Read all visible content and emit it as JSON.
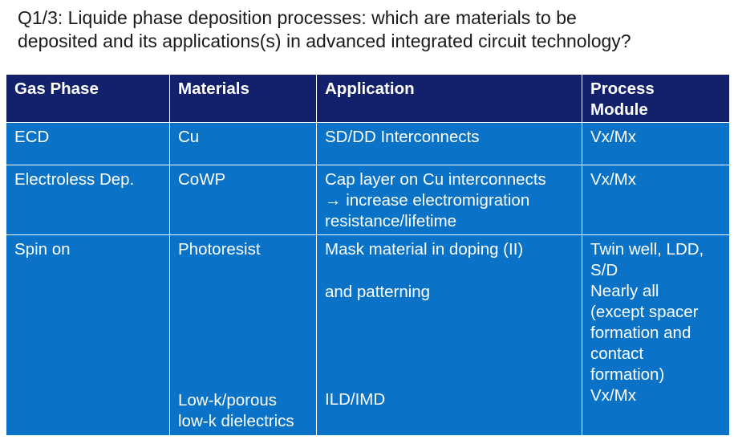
{
  "question": {
    "line1": "Q1/3: Liquide phase deposition processes: which are materials to be",
    "line2": "deposited and its applications(s) in advanced integrated circuit technology?"
  },
  "table": {
    "headers": {
      "col1": "Gas Phase",
      "col2": "Materials",
      "col3": "Application",
      "col4_line1": "Process",
      "col4_line2": "Module"
    },
    "rows": {
      "ecd": {
        "phase": "ECD",
        "material": "Cu",
        "application": "SD/DD Interconnects",
        "module": "Vx/Mx"
      },
      "electroless": {
        "phase": "Electroless Dep.",
        "material": "CoWP",
        "application_line1": "Cap layer on Cu interconnects",
        "application_line2": "→ increase electromigration",
        "application_line3": "resistance/lifetime",
        "module": "Vx/Mx"
      },
      "spin": {
        "phase": "Spin on",
        "material1": "Photoresist",
        "material2_line1": "Low-k/porous",
        "material2_line2": "low-k dielectrics",
        "application1": "Mask material in doping (II)",
        "application2": "and patterning",
        "application3": "ILD/IMD",
        "module1_line1": "Twin well, LDD,",
        "module1_line2": "S/D",
        "module2_line1": "Nearly all",
        "module2_line2": "(except spacer",
        "module2_line3": "formation and",
        "module2_line4": "contact",
        "module2_line5": "formation)",
        "module3": "Vx/Mx"
      }
    }
  }
}
